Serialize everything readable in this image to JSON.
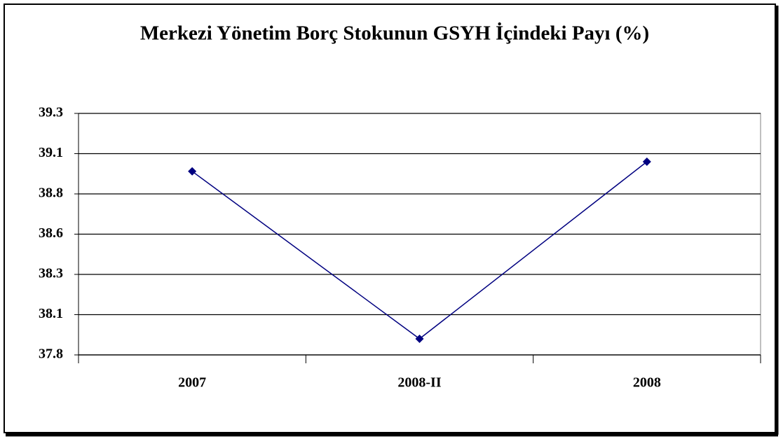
{
  "chart_data": {
    "type": "line",
    "title": "Merkezi Yönetim Borç Stokunun GSYH İçindeki Payı (%)",
    "categories": [
      "2007",
      "2008-II",
      "2008"
    ],
    "series": [
      {
        "name": "Merkezi Yönetim Borç Stokunun GSYH İçindeki Payı (%)",
        "color": "#000080",
        "values": [
          38.94,
          37.9,
          39.0
        ]
      }
    ],
    "ylim": [
      37.8,
      39.3
    ],
    "yticks": [
      37.8,
      {
        "value": 38.05,
        "label": "38.1"
      },
      38.3,
      {
        "value": 38.55,
        "label": "38.6"
      },
      38.8,
      {
        "value": 39.05,
        "label": "39.1"
      },
      39.3
    ],
    "grid": true
  }
}
